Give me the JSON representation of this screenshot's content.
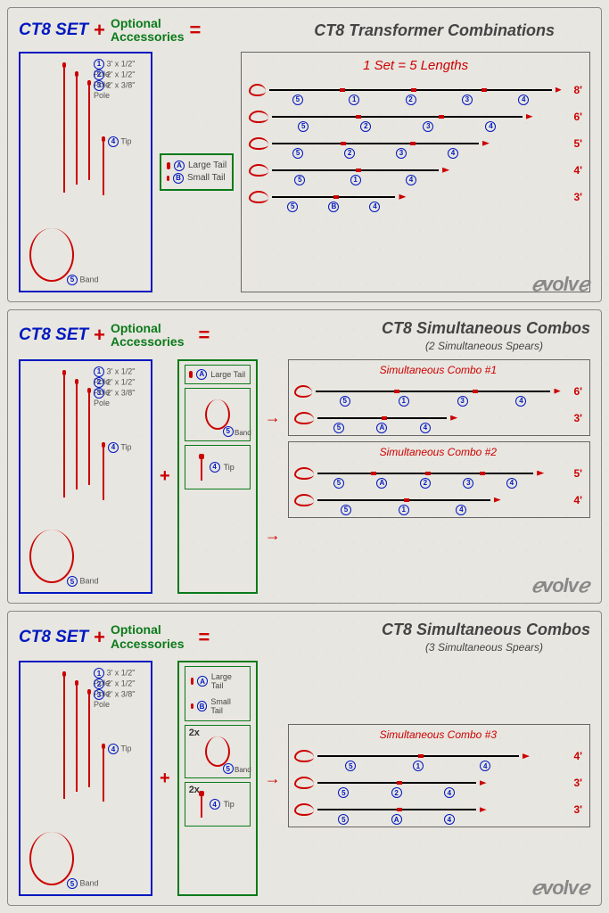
{
  "colors": {
    "blue": "#0018c0",
    "red": "#cc0000",
    "green": "#0a7a1a",
    "grey": "#888888",
    "text": "#444444",
    "bg": "#e8e6e0"
  },
  "set_components": {
    "poles": [
      {
        "num": "1",
        "label": "3' x 1/2\" Pole"
      },
      {
        "num": "2",
        "label": "2' x 1/2\" Pole"
      },
      {
        "num": "3",
        "label": "2' x 3/8\" Pole"
      }
    ],
    "tip": {
      "num": "4",
      "label": "Tip"
    },
    "band": {
      "num": "5",
      "label": "Band"
    }
  },
  "tails": {
    "large": {
      "letter": "A",
      "label": "Large Tail"
    },
    "small": {
      "letter": "B",
      "label": "Small Tail"
    }
  },
  "labels": {
    "ct8set": "CT8 SET",
    "plus": "+",
    "equals": "=",
    "optional": "Optional",
    "accessories": "Accessories",
    "brand": "ℯvolvℯ"
  },
  "panel1": {
    "title": "CT8 Transformer Combinations",
    "result_title": "1 Set = 5 Lengths",
    "spears": [
      {
        "len": "8'",
        "rel_width": 1.0,
        "markers": [
          "5",
          "1",
          "2",
          "3",
          "4"
        ]
      },
      {
        "len": "6'",
        "rel_width": 0.75,
        "markers": [
          "5",
          "2",
          "3",
          "4"
        ]
      },
      {
        "len": "5'",
        "rel_width": 0.62,
        "markers": [
          "5",
          "2",
          "3",
          "4"
        ]
      },
      {
        "len": "4'",
        "rel_width": 0.5,
        "markers": [
          "5",
          "1",
          "4"
        ]
      },
      {
        "len": "3'",
        "rel_width": 0.37,
        "markers": [
          "5",
          "B",
          "4"
        ]
      }
    ]
  },
  "panel2": {
    "title": "CT8 Simultaneous Combos",
    "subtitle": "(2 Simultaneous Spears)",
    "accessories": {
      "tails": [
        "large"
      ],
      "band_qty": "",
      "tip_qty": ""
    },
    "combos": [
      {
        "name": "Simultaneous Combo #1",
        "spears": [
          {
            "len": "6'",
            "rel_width": 0.9,
            "markers": [
              "5",
              "1",
              "3",
              "4"
            ]
          },
          {
            "len": "3'",
            "rel_width": 0.45,
            "markers": [
              "5",
              "A",
              "4"
            ]
          }
        ]
      },
      {
        "name": "Simultaneous Combo #2",
        "spears": [
          {
            "len": "5'",
            "rel_width": 0.75,
            "markers": [
              "5",
              "A",
              "2",
              "3",
              "4"
            ]
          },
          {
            "len": "4'",
            "rel_width": 0.6,
            "markers": [
              "5",
              "1",
              "4"
            ]
          }
        ]
      }
    ]
  },
  "panel3": {
    "title": "CT8 Simultaneous Combos",
    "subtitle": "(3 Simultaneous Spears)",
    "accessories": {
      "tails": [
        "large",
        "small"
      ],
      "band_qty": "2x",
      "tip_qty": "2x"
    },
    "combo": {
      "name": "Simultaneous Combo #3",
      "spears": [
        {
          "len": "4'",
          "rel_width": 0.7,
          "markers": [
            "5",
            "1",
            "4"
          ]
        },
        {
          "len": "3'",
          "rel_width": 0.55,
          "markers": [
            "5",
            "2",
            "4"
          ]
        },
        {
          "len": "3'",
          "rel_width": 0.55,
          "markers": [
            "5",
            "A",
            "4"
          ]
        }
      ]
    }
  }
}
